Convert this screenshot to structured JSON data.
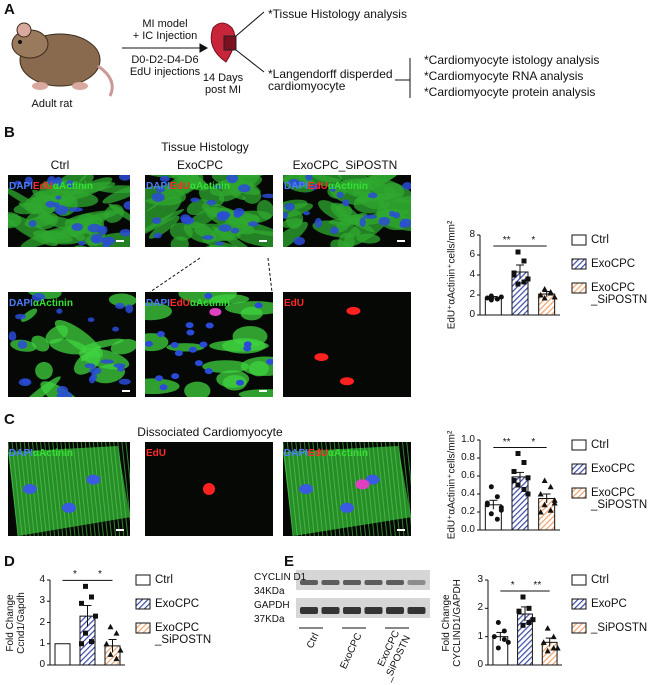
{
  "panel_labels": {
    "a": "A",
    "b": "B",
    "c": "C",
    "d": "D",
    "e": "E"
  },
  "schematic": {
    "animal_label": "Adult rat",
    "arrow_text_1": "MI model\n+ IC Injection",
    "arrow_text_2": "D0-D2-D4-D6\nEdU injections",
    "timepoint": "14 Days\npost MI",
    "branch_1": "*Tissue Histology analysis",
    "branch_2": "*Langendorff disperded\ncardiomyocyte",
    "analyses": [
      "*Cardiomyocyte istology analysis",
      "*Cardiomyocyte RNA analysis",
      "*Cardiomyocyte protein analysis"
    ]
  },
  "stain_colors": {
    "DAPI": "#4d7dff",
    "EdU": "#ff2a2a",
    "αActinin": "#35e035"
  },
  "histology": {
    "title": "Tissue Histology",
    "groups": [
      "Ctrl",
      "ExoCPC",
      "ExoCPC_SiPOSTN"
    ],
    "images": [
      {
        "label": [
          "DAPI",
          "EdU",
          "αActinin"
        ]
      },
      {
        "label": [
          "DAPI",
          "EdU",
          "αActinin"
        ]
      },
      {
        "label": [
          "DAPI",
          "EdU",
          "αActinin"
        ]
      },
      {
        "label": [
          "DAPI",
          "αActinin"
        ]
      },
      {
        "label": [
          "DAPI",
          "EdU",
          "αActinin"
        ]
      },
      {
        "label": [
          "EdU"
        ]
      }
    ]
  },
  "dissociated": {
    "title": "Dissociated Cardiomyocyte",
    "images": [
      {
        "label": [
          "DAPI",
          "αActinin"
        ]
      },
      {
        "label": [
          "EdU"
        ]
      },
      {
        "label": [
          "DAPI",
          "EdU",
          "αActinin"
        ]
      }
    ]
  },
  "western_blot": {
    "bands": [
      "CYCLIN D1",
      "GAPDH"
    ],
    "sizes": [
      "34KDa",
      "37KDa"
    ],
    "groups": [
      "Ctrl",
      "ExoCPC",
      "ExoCPC\n_SiPOSTN"
    ]
  },
  "chart_data": [
    {
      "type": "bar",
      "y_label": "EdU⁺αActinin⁺cells/mm²",
      "ylim": [
        0,
        8
      ],
      "yticks": [
        0,
        2,
        4,
        6,
        8
      ],
      "significance": [
        "**",
        "*"
      ],
      "series": [
        {
          "name": "Ctrl",
          "color": "#ffffff",
          "pattern": "none",
          "marker": "circle",
          "values": [
            1.7
          ],
          "errors": [
            0.15
          ],
          "points": [
            [
              1.5,
              1.6,
              1.7,
              1.8,
              1.9,
              1.6
            ]
          ]
        },
        {
          "name": "ExoCPC",
          "color": "#3a4aa8",
          "pattern": "hatch",
          "marker": "square",
          "values": [
            4.3
          ],
          "errors": [
            0.7
          ],
          "points": [
            [
              6.3,
              5.4,
              4.2,
              3.6,
              3.1,
              3.3,
              4.0
            ]
          ]
        },
        {
          "name": "ExoCPC\n_SiPOSTN",
          "color": "#f2a36b",
          "pattern": "hatch",
          "marker": "triangle",
          "values": [
            2.1
          ],
          "errors": [
            0.25
          ],
          "points": [
            [
              2.6,
              2.3,
              2.0,
              1.8,
              1.7,
              2.2
            ]
          ]
        }
      ]
    },
    {
      "type": "bar",
      "y_label": "EdU⁺αActinin⁺cells/mm²",
      "ylim": [
        0,
        1
      ],
      "yticks": [
        {
          "value": 0,
          "label": "0.0"
        },
        0.2,
        0.4,
        0.6,
        0.8,
        {
          "value": 1,
          "label": "1.0"
        }
      ],
      "significance": [
        "**",
        "*"
      ],
      "series": [
        {
          "name": "Ctrl",
          "color": "#ffffff",
          "pattern": "none",
          "marker": "circle",
          "values": [
            0.28
          ],
          "errors": [
            0.05
          ],
          "points": [
            [
              0.48,
              0.37,
              0.3,
              0.25,
              0.18,
              0.12,
              0.28,
              0.22
            ]
          ]
        },
        {
          "name": "ExoCPC",
          "color": "#3a4aa8",
          "pattern": "hatch",
          "marker": "square",
          "values": [
            0.59
          ],
          "errors": [
            0.05
          ],
          "points": [
            [
              0.85,
              0.75,
              0.65,
              0.58,
              0.5,
              0.45,
              0.55,
              0.4
            ]
          ]
        },
        {
          "name": "ExoCPC\n_SiPOSTN",
          "color": "#f2a36b",
          "pattern": "hatch",
          "marker": "triangle",
          "values": [
            0.35
          ],
          "errors": [
            0.05
          ],
          "points": [
            [
              0.55,
              0.48,
              0.4,
              0.33,
              0.28,
              0.22,
              0.2,
              0.3
            ]
          ]
        }
      ]
    },
    {
      "type": "bar",
      "y_label": "Fold Change\nCcnd1/Gapdh",
      "ylim": [
        0,
        4
      ],
      "yticks": [
        0,
        1,
        2,
        3,
        4
      ],
      "significance": [
        "*",
        "*"
      ],
      "series": [
        {
          "name": "Ctrl",
          "color": "#ffffff",
          "pattern": "none",
          "marker": "circle",
          "values": [
            1
          ]
        },
        {
          "name": "ExoCPC",
          "color": "#3a4aa8",
          "pattern": "hatch",
          "marker": "square",
          "values": [
            2.3
          ],
          "errors": [
            0.5
          ],
          "points": [
            [
              3.7,
              3.2,
              2.9,
              2.3,
              1.5,
              1.1,
              1.0
            ]
          ]
        },
        {
          "name": "ExoCPC\n_SiPOSTN",
          "color": "#f2a36b",
          "pattern": "hatch",
          "marker": "triangle",
          "values": [
            0.9
          ],
          "errors": [
            0.3
          ],
          "points": [
            [
              1.8,
              1.5,
              1.0,
              0.7,
              0.5,
              0.3
            ]
          ]
        }
      ]
    },
    {
      "type": "bar",
      "y_label": "Fold Change\nCYCLIND1/GAPDH",
      "ylim": [
        0,
        3
      ],
      "yticks": [
        0,
        1,
        2,
        3
      ],
      "significance": [
        "*",
        "**"
      ],
      "series": [
        {
          "name": "Ctrl",
          "color": "#ffffff",
          "pattern": "none",
          "marker": "circle",
          "values": [
            1.0
          ],
          "errors": [
            0.15
          ],
          "points": [
            [
              1.5,
              1.2,
              1.0,
              0.8,
              0.6,
              0.9
            ]
          ]
        },
        {
          "name": "ExoPC",
          "color": "#3a4aa8",
          "pattern": "hatch",
          "marker": "square",
          "values": [
            1.8
          ],
          "errors": [
            0.25
          ],
          "points": [
            [
              2.4,
              2.0,
              1.9,
              1.6,
              1.4,
              1.5
            ]
          ]
        },
        {
          "name": "_SiPOSTN",
          "color": "#f2a36b",
          "pattern": "hatch",
          "marker": "triangle",
          "values": [
            0.8
          ],
          "errors": [
            0.15
          ],
          "points": [
            [
              1.3,
              1.0,
              0.8,
              0.6,
              0.5,
              0.6
            ]
          ]
        }
      ]
    }
  ]
}
